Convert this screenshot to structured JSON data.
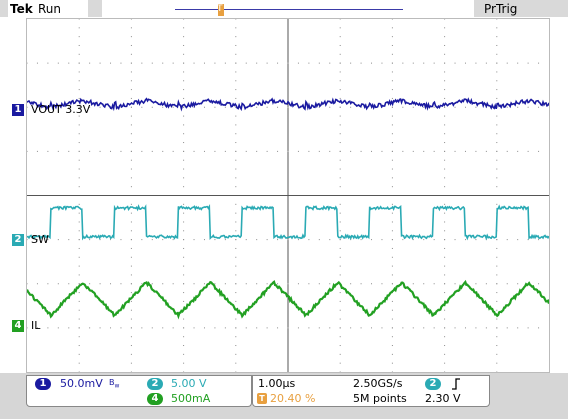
{
  "header": {
    "brand": "Tek",
    "run_state": "Run",
    "trigger_mode": "PrTrig"
  },
  "channels": [
    {
      "id": "1",
      "label": "VOUT 3.3V",
      "color": "#1a1aa0"
    },
    {
      "id": "2",
      "label": "SW",
      "color": "#2aaab4"
    },
    {
      "id": "4",
      "label": "IL",
      "color": "#22a022"
    }
  ],
  "readouts": {
    "ch1": {
      "id": "1",
      "scale": "50.0mV",
      "bw_icon": "bandwidth-limit-icon"
    },
    "ch2": {
      "id": "2",
      "scale": "5.00 V"
    },
    "ch4": {
      "id": "4",
      "scale": "500mA"
    },
    "horizontal": {
      "timebase": "1.00µs",
      "sample_rate": "2.50GS/s",
      "position": "20.40 %",
      "record_length": "5M points"
    },
    "trigger": {
      "source": "2",
      "slope_icon": "rising-edge-icon",
      "level": "2.30 V"
    }
  },
  "colors": {
    "ch1": "#1a1aa0",
    "ch2": "#2aaab4",
    "ch4": "#22a022",
    "trigger": "#e8a040",
    "grid": "#8a8a8a"
  }
}
